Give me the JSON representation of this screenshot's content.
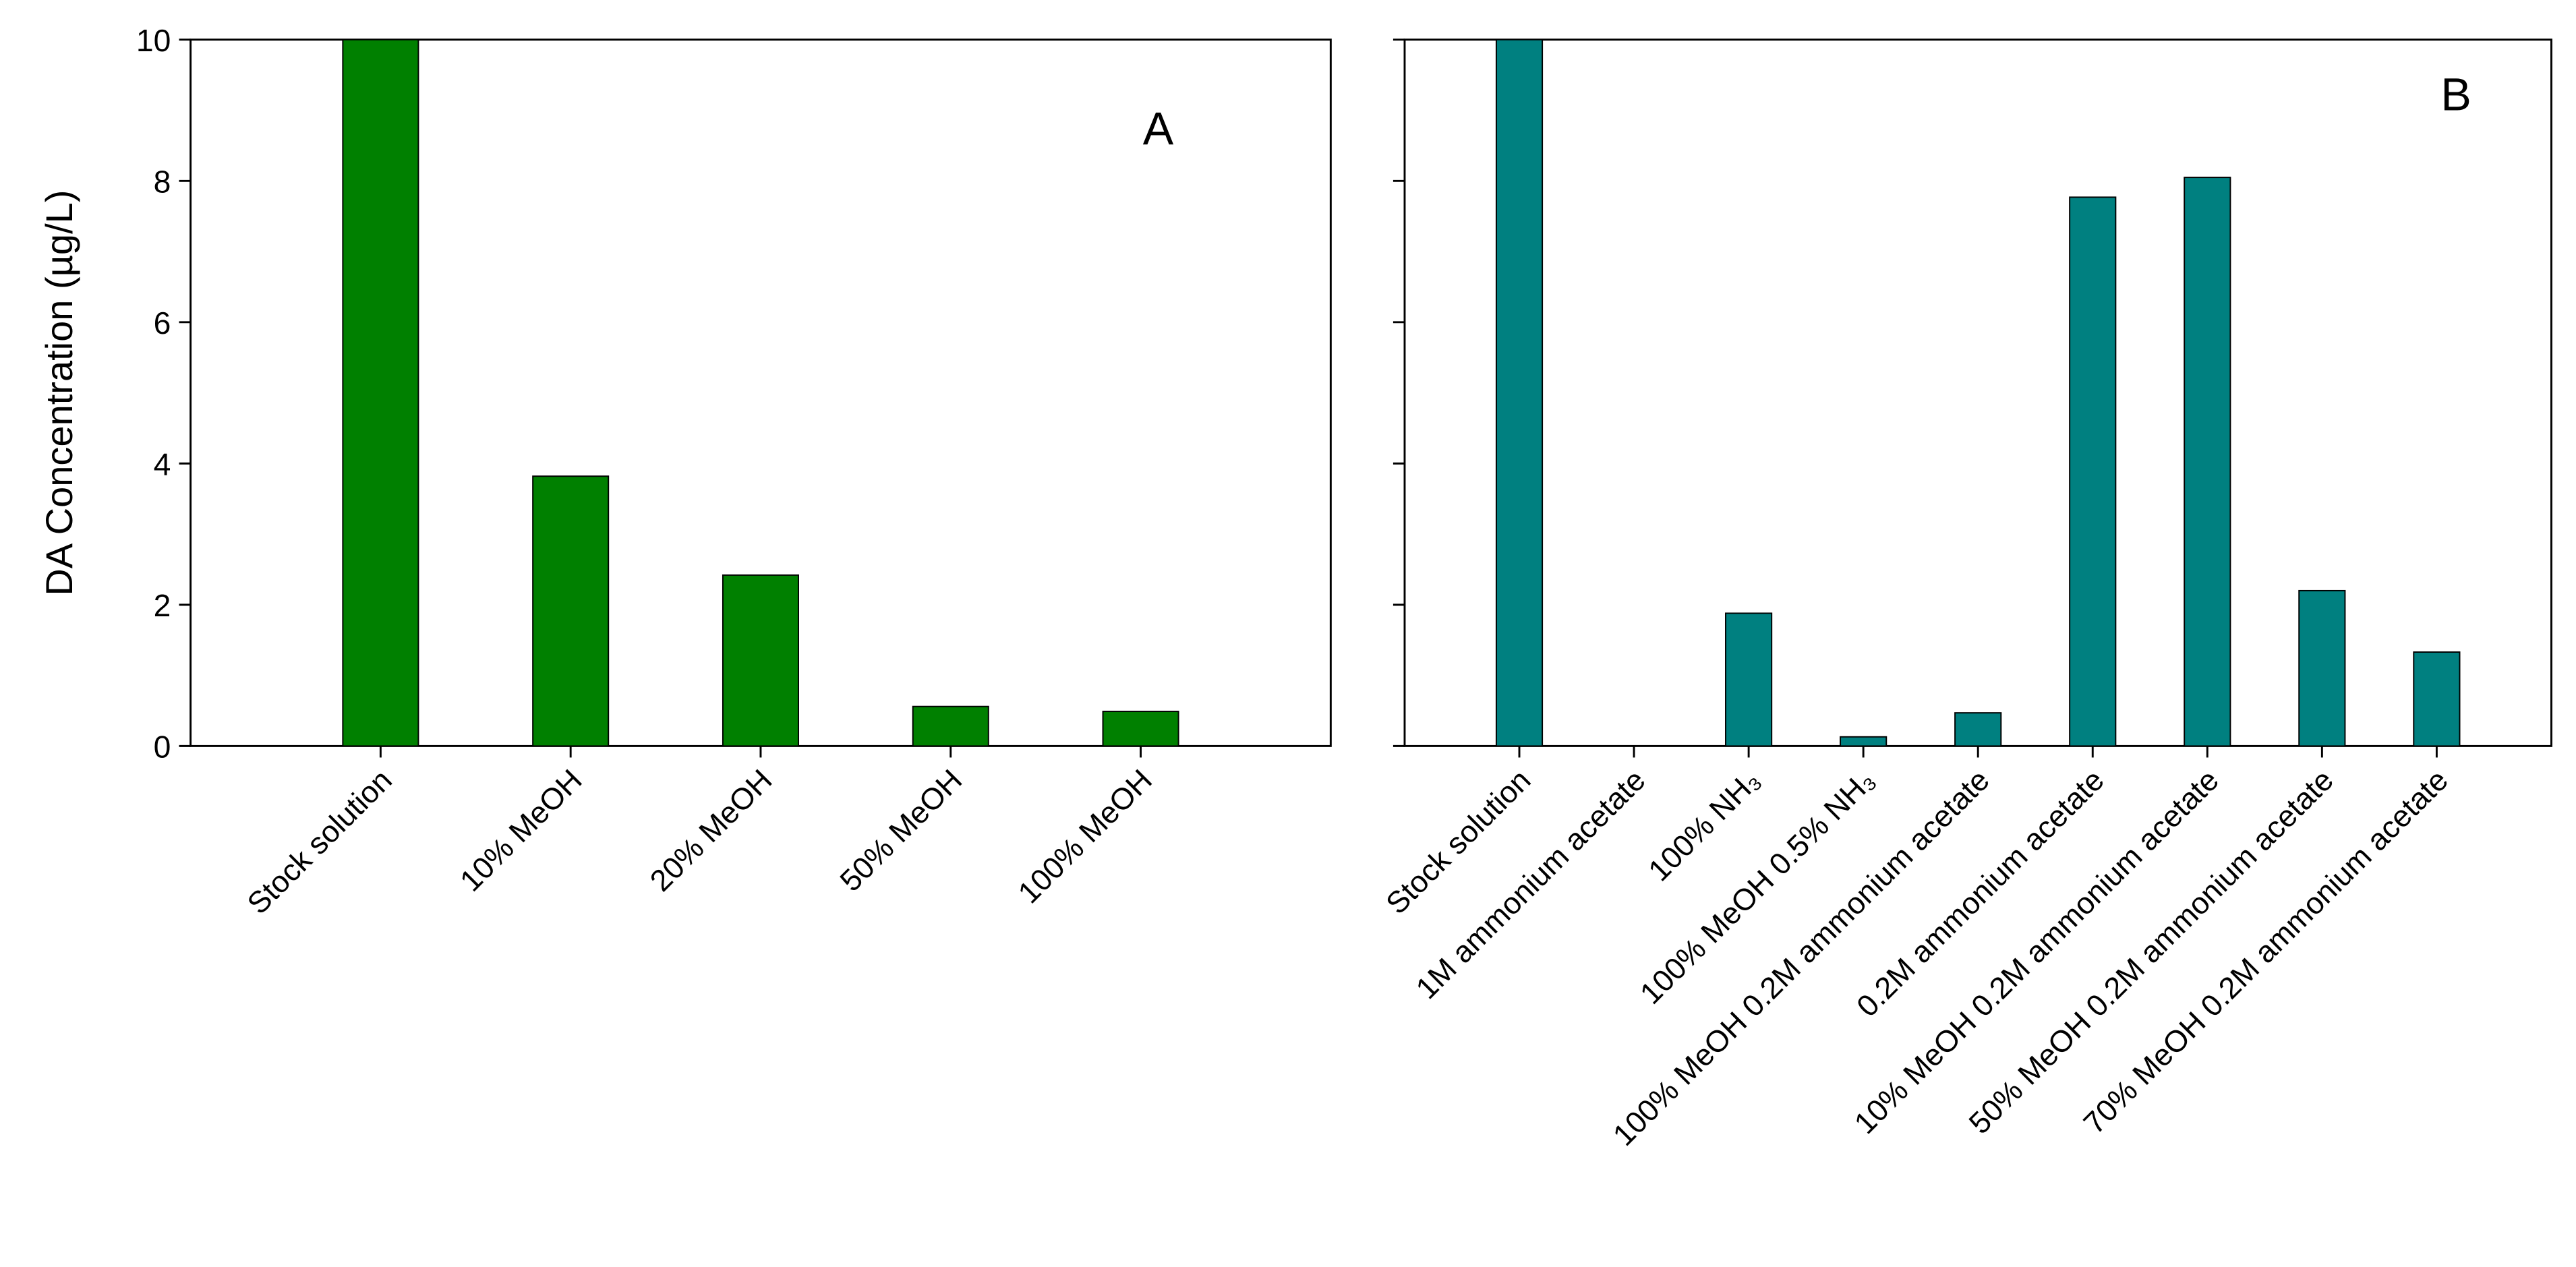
{
  "chart_data": [
    {
      "type": "bar",
      "y_label": "DA Concentration (µg/L)",
      "annotation": "A",
      "categories": [
        "Stock solution",
        "10% MeOH",
        "20% MeOH",
        "50% MeOH",
        "100% MeOH"
      ],
      "values": [
        10,
        3.82,
        2.42,
        0.56,
        0.49
      ],
      "color": "#008000",
      "ylim": [
        0,
        10
      ],
      "yticks": [
        0,
        2,
        4,
        6,
        8,
        10
      ]
    },
    {
      "type": "bar",
      "annotation": "B",
      "categories": [
        "Stock solution",
        "1M ammonium acetate",
        "100% NH₃",
        "100% MeOH 0.5% NH₃",
        "100% MeOH 0.2M ammonium acetate",
        "0.2M ammonium acetate",
        "10% MeOH 0.2M ammonium acetate",
        "50% MeOH 0.2M ammonium acetate",
        "70% MeOH 0.2M ammonium acetate"
      ],
      "values": [
        10,
        0,
        1.88,
        0.13,
        0.47,
        7.77,
        8.05,
        2.2,
        1.33
      ],
      "color": "#008080",
      "ylim": [
        0,
        10
      ],
      "yticks": [
        0,
        2,
        4,
        6,
        8,
        10
      ]
    }
  ]
}
